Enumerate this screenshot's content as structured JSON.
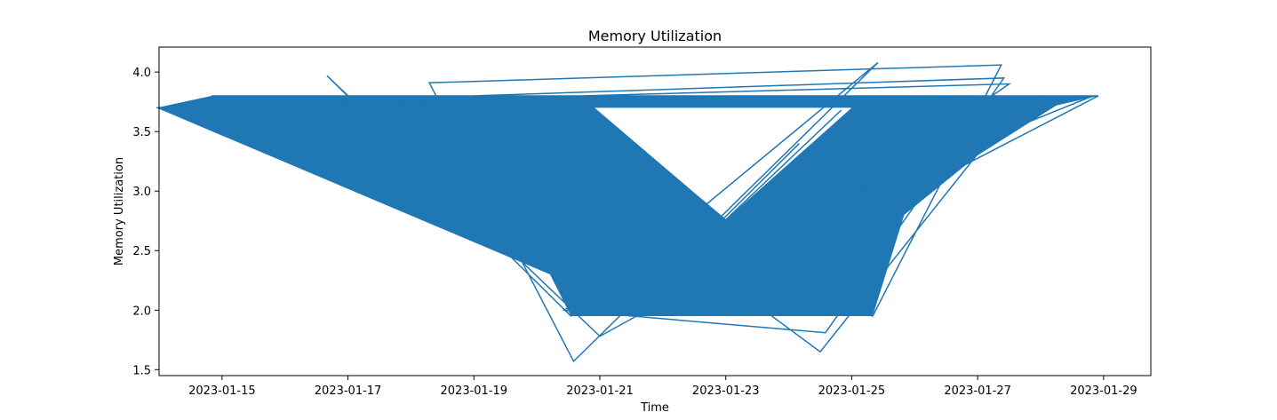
{
  "chart_data": {
    "type": "line",
    "title": "Memory Utilization",
    "xlabel": "Time",
    "ylabel": "Memory Utilization",
    "x_axis_type": "date",
    "xlim": [
      "2023-01-14 00:00",
      "2023-01-29 18:00"
    ],
    "ylim": [
      1.45,
      4.21
    ],
    "xticks": [
      "2023-01-15",
      "2023-01-17",
      "2023-01-19",
      "2023-01-21",
      "2023-01-23",
      "2023-01-25",
      "2023-01-27",
      "2023-01-29"
    ],
    "yticks": [
      "1.5",
      "2.0",
      "2.5",
      "3.0",
      "3.5",
      "4.0"
    ],
    "grid": false,
    "legend": "none",
    "series": [
      {
        "color": "#1f77b4",
        "points": [
          [
            "2023-01-13 23:00",
            3.7
          ],
          [
            "2023-01-27 12:00",
            3.9
          ],
          [
            "2023-01-22 08:00",
            2.0
          ],
          [
            "2023-01-28 22:00",
            3.8
          ],
          [
            "2023-01-14 20:00",
            3.8
          ],
          [
            "2023-01-25 08:00",
            1.95
          ],
          [
            "2023-01-27 09:00",
            4.06
          ],
          [
            "2023-01-18 07:00",
            3.91
          ],
          [
            "2023-01-20 14:00",
            1.57
          ],
          [
            "2023-01-25 10:00",
            4.08
          ],
          [
            "2023-01-20 13:00",
            1.95
          ],
          [
            "2023-01-16 16:00",
            3.97
          ],
          [
            "2023-01-21 00:00",
            1.78
          ],
          [
            "2023-01-27 14:00",
            3.7
          ],
          [
            "2023-01-24 12:00",
            1.65
          ],
          [
            "2023-01-19 00:00",
            3.8
          ],
          [
            "2023-01-27 10:00",
            3.95
          ],
          [
            "2023-01-24 14:00",
            1.81
          ],
          [
            "2023-01-20 10:00",
            2.0
          ],
          [
            "2023-01-28 20:00",
            3.8
          ],
          [
            "2023-01-13 23:00",
            3.7
          ]
        ]
      }
    ],
    "region_fill_shown_by_dense_lines": true
  }
}
